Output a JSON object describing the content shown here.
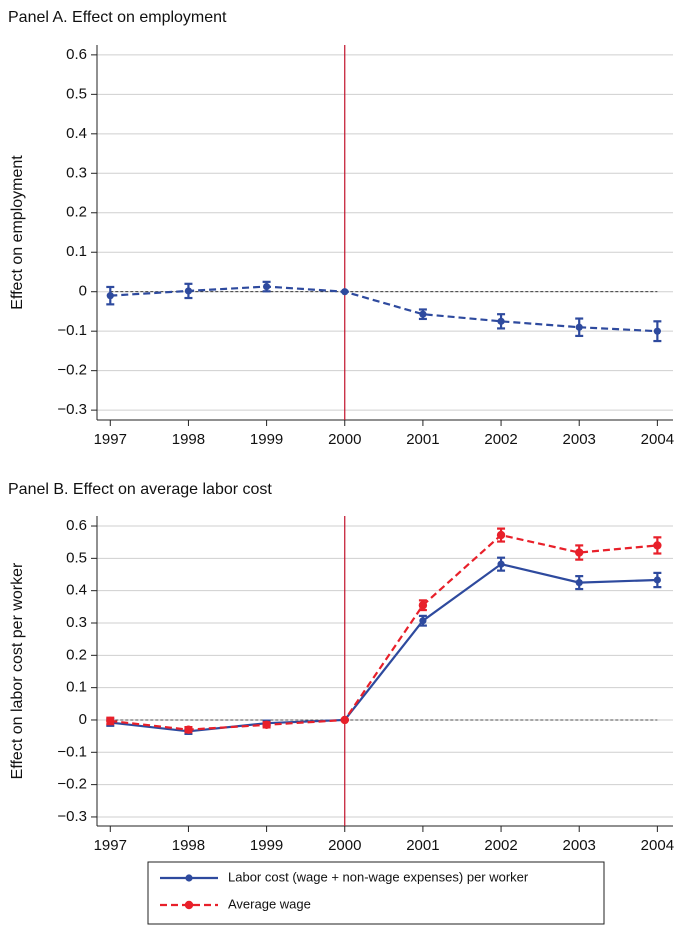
{
  "chart_data": [
    {
      "type": "line",
      "title": "Panel A. Effect on employment",
      "y_label": "Effect on employment",
      "x": [
        1997,
        1998,
        1999,
        2000,
        2001,
        2002,
        2003,
        2004
      ],
      "series": [
        {
          "color": "#2e4a9e",
          "dashed": true,
          "values": [
            -0.01,
            0.002,
            0.013,
            0,
            -0.057,
            -0.075,
            -0.09,
            -0.1
          ],
          "errors": [
            0.022,
            0.018,
            0.012,
            0,
            0.012,
            0.018,
            0.022,
            0.025
          ]
        }
      ],
      "xlim": [
        1996.83,
        2004.2
      ],
      "ylim": [
        -0.325,
        0.625
      ],
      "xticks": [
        1997,
        1998,
        1999,
        2000,
        2001,
        2002,
        2003,
        2004
      ],
      "yticks": [
        {
          "value": -0.3,
          "label": "−0.3"
        },
        {
          "value": -0.2,
          "label": "−0.2"
        },
        {
          "value": -0.1,
          "label": "−0.1"
        },
        0,
        0.1,
        0.2,
        0.3,
        0.4,
        0.5,
        0.6
      ],
      "grid": true,
      "vline": 2000,
      "vline_color": "#c0102a",
      "hline": 0
    },
    {
      "type": "line",
      "title": "Panel B. Effect on average labor cost",
      "y_label": "Effect on labor cost per worker",
      "x": [
        1997,
        1998,
        1999,
        2000,
        2001,
        2002,
        2003,
        2004
      ],
      "series": [
        {
          "name": "Labor cost (wage + non-wage expenses) per worker",
          "color": "#2e4a9e",
          "dashed": false,
          "values": [
            -0.008,
            -0.035,
            -0.01,
            0,
            0.307,
            0.482,
            0.425,
            0.433
          ],
          "errors": [
            0.01,
            0.008,
            0.008,
            0,
            0.015,
            0.02,
            0.02,
            0.022
          ]
        },
        {
          "name": "Average wage",
          "color": "#e8202a",
          "dashed": true,
          "values": [
            -0.003,
            -0.03,
            -0.015,
            0,
            0.355,
            0.572,
            0.518,
            0.54
          ],
          "errors": [
            0.01,
            0.008,
            0.008,
            0,
            0.015,
            0.02,
            0.022,
            0.025
          ]
        }
      ],
      "xlim": [
        1996.83,
        2004.2
      ],
      "ylim": [
        -0.328,
        0.631
      ],
      "xticks": [
        1997,
        1998,
        1999,
        2000,
        2001,
        2002,
        2003,
        2004
      ],
      "yticks": [
        {
          "value": -0.3,
          "label": "−0.3"
        },
        {
          "value": -0.2,
          "label": "−0.2"
        },
        {
          "value": -0.1,
          "label": "−0.1"
        },
        0,
        0.1,
        0.2,
        0.3,
        0.4,
        0.5,
        0.6
      ],
      "grid": true,
      "vline": 2000,
      "vline_color": "#c0102a",
      "hline": 0,
      "legend": "bottom"
    }
  ]
}
